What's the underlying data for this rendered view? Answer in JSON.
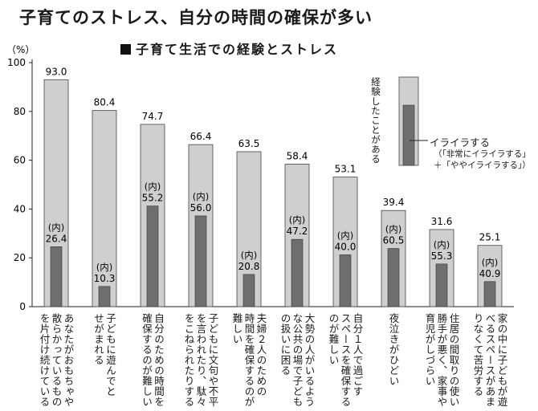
{
  "title": "子育てのストレス、自分の時間の確保が多い",
  "subtitle": "子育て生活での経験とストレス",
  "legend": {
    "experience_label": "経験したことがある",
    "irritation_label": "イライラする",
    "note_line1": "（「非常にイライラする」",
    "note_line2": "＋「ややイライラする」）",
    "colors": {
      "experience": "#cfcfcf",
      "irritation": "#6e6e6e"
    }
  },
  "chart_data": {
    "type": "bar",
    "title": "子育て生活での経験とストレス",
    "ylabel": "（%）",
    "ylim": [
      0,
      100
    ],
    "yticks": [
      "0",
      "20",
      "40",
      "60",
      "80",
      "100"
    ],
    "inner_label": "(内)",
    "categories": [
      "あなたがおもちゃや散らかっているものを片付け続けている",
      "子どもに遊んでとせがまれる",
      "自分のための時間を確保するのが難しい",
      "子どもに文句や不平を言われたり、駄々をこねられたりする",
      "夫婦２人のための時間を確保するのが難しい",
      "大勢の人がいるような公共の場で子どもの扱いに困る",
      "自分１人で過ごすスペースを確保するのが難しい",
      "夜泣きがひどい",
      "住居の間取りの使い勝手が悪く、家事や育児がしづらい",
      "家の中に子どもが遊べるスペースがあまりなくて苦労する"
    ],
    "category_lines": [
      [
        "あなたがおもちゃや",
        "散らかっているもの",
        "を片付け続けている"
      ],
      [
        "子どもに遊んでと",
        "せがまれる"
      ],
      [
        "自分のための時間を",
        "確保するのが難しい"
      ],
      [
        "子どもに文句や不平",
        "を言われたり、駄々",
        "をこねられたりする"
      ],
      [
        "夫婦２人のための",
        "時間を確保するのが",
        "難しい"
      ],
      [
        "大勢の人がいるよう",
        "な公共の場で子ども",
        "の扱いに困る"
      ],
      [
        "自分１人で過ごす",
        "スペースを確保する",
        "のが難しい"
      ],
      [
        "夜泣きがひどい"
      ],
      [
        "住居の間取りの使い",
        "勝手が悪く、家事や",
        "育児がしづらい"
      ],
      [
        "家の中に子どもが遊",
        "べるスペースがあま",
        "りなくて苦労する"
      ]
    ],
    "series": [
      {
        "name": "経験したことがある",
        "values": [
          93.0,
          80.4,
          74.7,
          66.4,
          63.5,
          58.4,
          53.1,
          39.4,
          31.6,
          25.1
        ],
        "labels": [
          "93.0",
          "80.4",
          "74.7",
          "66.4",
          "63.5",
          "58.4",
          "53.1",
          "39.4",
          "31.6",
          "25.1"
        ]
      },
      {
        "name": "イライラする",
        "values": [
          26.4,
          10.3,
          55.2,
          56.0,
          20.8,
          47.2,
          40.0,
          60.5,
          55.3,
          40.9
        ],
        "labels": [
          "26.4",
          "10.3",
          "55.2",
          "56.0",
          "20.8",
          "47.2",
          "40.0",
          "60.5",
          "55.3",
          "40.9"
        ]
      }
    ]
  }
}
